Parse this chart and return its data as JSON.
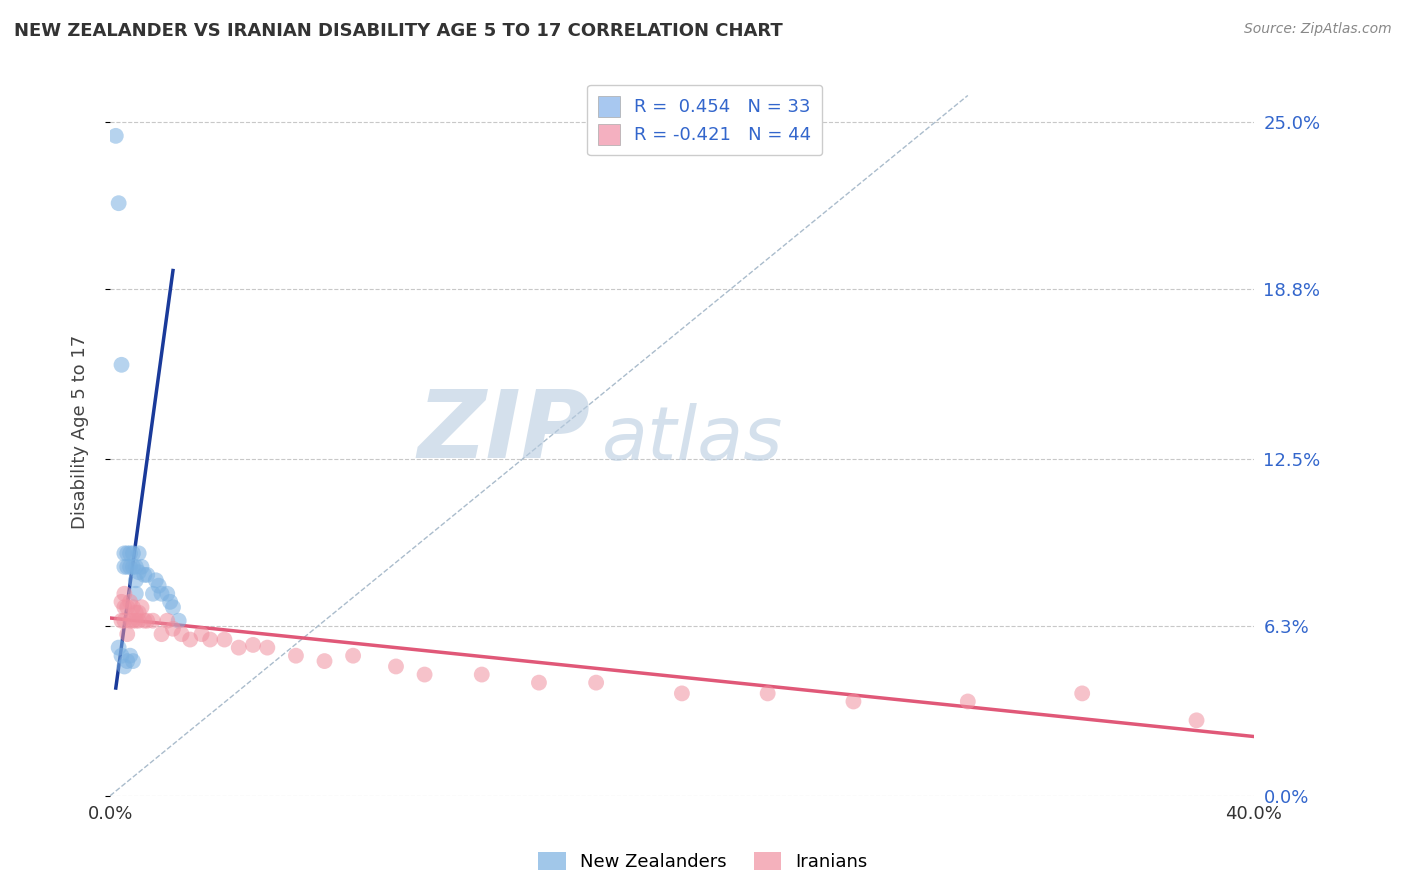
{
  "title": "NEW ZEALANDER VS IRANIAN DISABILITY AGE 5 TO 17 CORRELATION CHART",
  "source": "Source: ZipAtlas.com",
  "ylabel_left": "Disability Age 5 to 17",
  "legend_entries": [
    {
      "label": "R =  0.454   N = 33",
      "color": "#a8c8f0"
    },
    {
      "label": "R = -0.421   N = 44",
      "color": "#f4b0c0"
    }
  ],
  "legend_bottom": [
    "New Zealanders",
    "Iranians"
  ],
  "nz_color": "#7ab0e0",
  "ir_color": "#f090a0",
  "nz_line_color": "#1a3a9a",
  "ir_line_color": "#e05878",
  "diag_line_color": "#aabccc",
  "xlim": [
    0.0,
    0.4
  ],
  "ylim": [
    0.0,
    0.27
  ],
  "yticks": [
    0.0,
    0.063,
    0.125,
    0.188,
    0.25
  ],
  "ytick_labels_right": [
    "0.0%",
    "6.3%",
    "12.5%",
    "18.8%",
    "25.0%"
  ],
  "background_color": "#ffffff",
  "grid_color": "#c8c8c8",
  "watermark_zip": "ZIP",
  "watermark_atlas": "atlas",
  "watermark_color_zip": "#b8cce0",
  "watermark_color_atlas": "#b8cce0",
  "watermark_alpha": 0.6,
  "nz_trend_x": [
    0.002,
    0.022
  ],
  "nz_trend_y": [
    0.04,
    0.195
  ],
  "ir_trend_x": [
    0.0,
    0.4
  ],
  "ir_trend_y": [
    0.066,
    0.022
  ],
  "diag_line_x": [
    0.0,
    0.3
  ],
  "diag_line_y": [
    0.0,
    0.26
  ],
  "nz_x": [
    0.002,
    0.003,
    0.004,
    0.005,
    0.005,
    0.006,
    0.006,
    0.007,
    0.007,
    0.008,
    0.008,
    0.009,
    0.009,
    0.009,
    0.01,
    0.01,
    0.011,
    0.012,
    0.013,
    0.015,
    0.016,
    0.017,
    0.018,
    0.02,
    0.021,
    0.022,
    0.024,
    0.003,
    0.004,
    0.005,
    0.006,
    0.007,
    0.008
  ],
  "nz_y": [
    0.245,
    0.22,
    0.16,
    0.09,
    0.085,
    0.085,
    0.09,
    0.085,
    0.09,
    0.085,
    0.09,
    0.085,
    0.08,
    0.075,
    0.09,
    0.083,
    0.085,
    0.082,
    0.082,
    0.075,
    0.08,
    0.078,
    0.075,
    0.075,
    0.072,
    0.07,
    0.065,
    0.055,
    0.052,
    0.048,
    0.05,
    0.052,
    0.05
  ],
  "ir_x": [
    0.004,
    0.004,
    0.005,
    0.005,
    0.005,
    0.006,
    0.006,
    0.007,
    0.007,
    0.008,
    0.008,
    0.009,
    0.009,
    0.01,
    0.01,
    0.011,
    0.012,
    0.013,
    0.015,
    0.018,
    0.02,
    0.022,
    0.025,
    0.028,
    0.032,
    0.035,
    0.04,
    0.045,
    0.05,
    0.055,
    0.065,
    0.075,
    0.085,
    0.1,
    0.11,
    0.13,
    0.15,
    0.17,
    0.2,
    0.23,
    0.26,
    0.3,
    0.34,
    0.38
  ],
  "ir_y": [
    0.072,
    0.065,
    0.075,
    0.065,
    0.07,
    0.07,
    0.06,
    0.065,
    0.072,
    0.065,
    0.07,
    0.065,
    0.068,
    0.065,
    0.068,
    0.07,
    0.065,
    0.065,
    0.065,
    0.06,
    0.065,
    0.062,
    0.06,
    0.058,
    0.06,
    0.058,
    0.058,
    0.055,
    0.056,
    0.055,
    0.052,
    0.05,
    0.052,
    0.048,
    0.045,
    0.045,
    0.042,
    0.042,
    0.038,
    0.038,
    0.035,
    0.035,
    0.038,
    0.028
  ]
}
